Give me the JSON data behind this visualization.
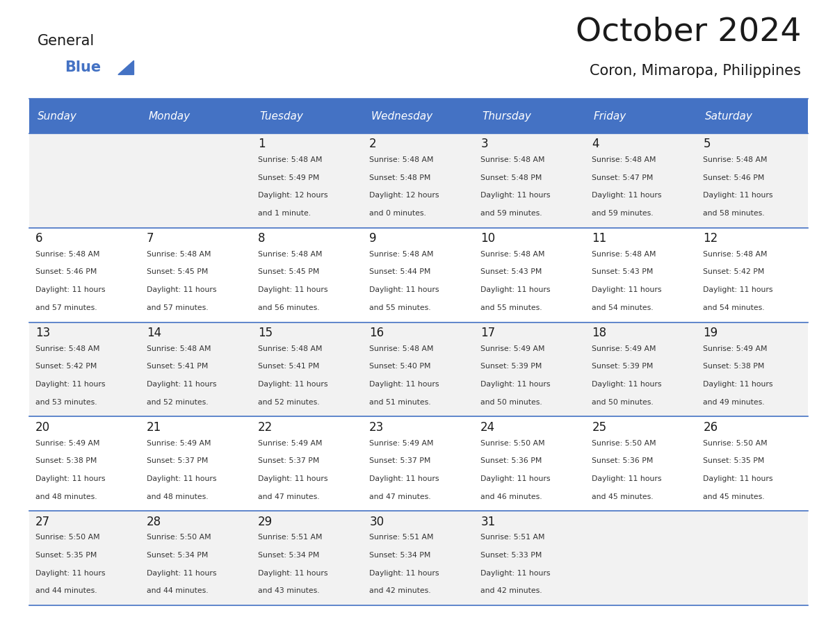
{
  "title": "October 2024",
  "subtitle": "Coron, Mimaropa, Philippines",
  "days_of_week": [
    "Sunday",
    "Monday",
    "Tuesday",
    "Wednesday",
    "Thursday",
    "Friday",
    "Saturday"
  ],
  "header_bg": "#4472C4",
  "header_text": "#FFFFFF",
  "row_bg_odd": "#F2F2F2",
  "row_bg_even": "#FFFFFF",
  "title_color": "#1a1a1a",
  "subtitle_color": "#1a1a1a",
  "day_num_color": "#1a1a1a",
  "cell_text_color": "#333333",
  "logo_general_color": "#1a1a1a",
  "logo_blue_color": "#4472C4",
  "separator_color": "#4472C4",
  "calendar_data": [
    [
      {
        "day": "",
        "sunrise": "",
        "sunset": "",
        "daylight": ""
      },
      {
        "day": "",
        "sunrise": "",
        "sunset": "",
        "daylight": ""
      },
      {
        "day": "1",
        "sunrise": "5:48 AM",
        "sunset": "5:49 PM",
        "daylight": "12 hours and 1 minute."
      },
      {
        "day": "2",
        "sunrise": "5:48 AM",
        "sunset": "5:48 PM",
        "daylight": "12 hours and 0 minutes."
      },
      {
        "day": "3",
        "sunrise": "5:48 AM",
        "sunset": "5:48 PM",
        "daylight": "11 hours and 59 minutes."
      },
      {
        "day": "4",
        "sunrise": "5:48 AM",
        "sunset": "5:47 PM",
        "daylight": "11 hours and 59 minutes."
      },
      {
        "day": "5",
        "sunrise": "5:48 AM",
        "sunset": "5:46 PM",
        "daylight": "11 hours and 58 minutes."
      }
    ],
    [
      {
        "day": "6",
        "sunrise": "5:48 AM",
        "sunset": "5:46 PM",
        "daylight": "11 hours and 57 minutes."
      },
      {
        "day": "7",
        "sunrise": "5:48 AM",
        "sunset": "5:45 PM",
        "daylight": "11 hours and 57 minutes."
      },
      {
        "day": "8",
        "sunrise": "5:48 AM",
        "sunset": "5:45 PM",
        "daylight": "11 hours and 56 minutes."
      },
      {
        "day": "9",
        "sunrise": "5:48 AM",
        "sunset": "5:44 PM",
        "daylight": "11 hours and 55 minutes."
      },
      {
        "day": "10",
        "sunrise": "5:48 AM",
        "sunset": "5:43 PM",
        "daylight": "11 hours and 55 minutes."
      },
      {
        "day": "11",
        "sunrise": "5:48 AM",
        "sunset": "5:43 PM",
        "daylight": "11 hours and 54 minutes."
      },
      {
        "day": "12",
        "sunrise": "5:48 AM",
        "sunset": "5:42 PM",
        "daylight": "11 hours and 54 minutes."
      }
    ],
    [
      {
        "day": "13",
        "sunrise": "5:48 AM",
        "sunset": "5:42 PM",
        "daylight": "11 hours and 53 minutes."
      },
      {
        "day": "14",
        "sunrise": "5:48 AM",
        "sunset": "5:41 PM",
        "daylight": "11 hours and 52 minutes."
      },
      {
        "day": "15",
        "sunrise": "5:48 AM",
        "sunset": "5:41 PM",
        "daylight": "11 hours and 52 minutes."
      },
      {
        "day": "16",
        "sunrise": "5:48 AM",
        "sunset": "5:40 PM",
        "daylight": "11 hours and 51 minutes."
      },
      {
        "day": "17",
        "sunrise": "5:49 AM",
        "sunset": "5:39 PM",
        "daylight": "11 hours and 50 minutes."
      },
      {
        "day": "18",
        "sunrise": "5:49 AM",
        "sunset": "5:39 PM",
        "daylight": "11 hours and 50 minutes."
      },
      {
        "day": "19",
        "sunrise": "5:49 AM",
        "sunset": "5:38 PM",
        "daylight": "11 hours and 49 minutes."
      }
    ],
    [
      {
        "day": "20",
        "sunrise": "5:49 AM",
        "sunset": "5:38 PM",
        "daylight": "11 hours and 48 minutes."
      },
      {
        "day": "21",
        "sunrise": "5:49 AM",
        "sunset": "5:37 PM",
        "daylight": "11 hours and 48 minutes."
      },
      {
        "day": "22",
        "sunrise": "5:49 AM",
        "sunset": "5:37 PM",
        "daylight": "11 hours and 47 minutes."
      },
      {
        "day": "23",
        "sunrise": "5:49 AM",
        "sunset": "5:37 PM",
        "daylight": "11 hours and 47 minutes."
      },
      {
        "day": "24",
        "sunrise": "5:50 AM",
        "sunset": "5:36 PM",
        "daylight": "11 hours and 46 minutes."
      },
      {
        "day": "25",
        "sunrise": "5:50 AM",
        "sunset": "5:36 PM",
        "daylight": "11 hours and 45 minutes."
      },
      {
        "day": "26",
        "sunrise": "5:50 AM",
        "sunset": "5:35 PM",
        "daylight": "11 hours and 45 minutes."
      }
    ],
    [
      {
        "day": "27",
        "sunrise": "5:50 AM",
        "sunset": "5:35 PM",
        "daylight": "11 hours and 44 minutes."
      },
      {
        "day": "28",
        "sunrise": "5:50 AM",
        "sunset": "5:34 PM",
        "daylight": "11 hours and 44 minutes."
      },
      {
        "day": "29",
        "sunrise": "5:51 AM",
        "sunset": "5:34 PM",
        "daylight": "11 hours and 43 minutes."
      },
      {
        "day": "30",
        "sunrise": "5:51 AM",
        "sunset": "5:34 PM",
        "daylight": "11 hours and 42 minutes."
      },
      {
        "day": "31",
        "sunrise": "5:51 AM",
        "sunset": "5:33 PM",
        "daylight": "11 hours and 42 minutes."
      },
      {
        "day": "",
        "sunrise": "",
        "sunset": "",
        "daylight": ""
      },
      {
        "day": "",
        "sunrise": "",
        "sunset": "",
        "daylight": ""
      }
    ]
  ]
}
